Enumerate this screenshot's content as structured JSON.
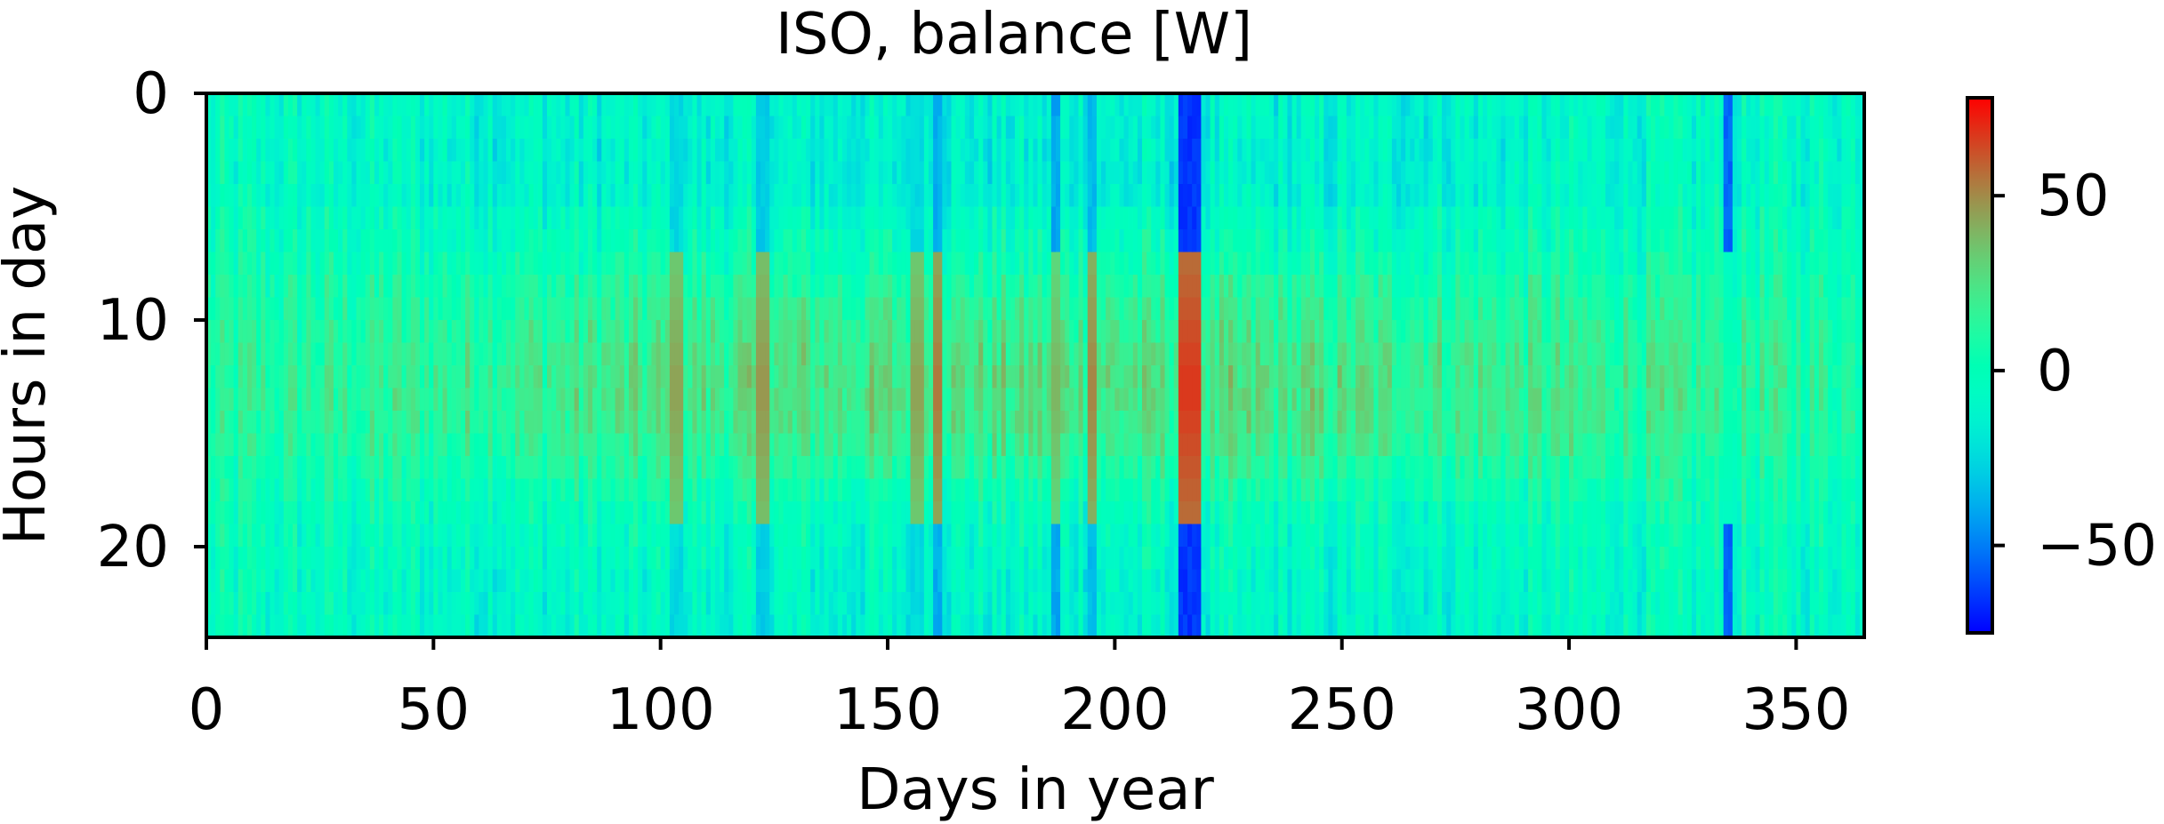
{
  "chart_data": {
    "type": "heatmap",
    "title": "ISO, balance [W]",
    "xlabel": "Days in year",
    "ylabel": "Hours in day",
    "xlim": [
      0,
      365
    ],
    "ylim": [
      24,
      0
    ],
    "x_ticks": [
      0,
      50,
      100,
      150,
      200,
      250,
      300,
      350
    ],
    "y_ticks": [
      0,
      10,
      20
    ],
    "colorbar": {
      "colormap": "rainbow",
      "vmin": -75,
      "vmax": 78,
      "ticks": [
        50,
        0,
        -50
      ],
      "tick_labels": [
        "50",
        "0",
        "−50"
      ]
    },
    "grid": false,
    "value_profile": {
      "dims": {
        "days": 365,
        "hours": 24
      },
      "hourly_mean": [
        -14,
        -15,
        -16,
        -16,
        -15,
        -7,
        -3,
        2,
        9,
        14,
        18,
        22,
        24,
        24,
        22,
        18,
        10,
        3,
        -3,
        -7,
        -9,
        -11,
        -12,
        -13
      ],
      "notable_days": [
        {
          "day_start": 214,
          "day_end": 218,
          "night_value": -65,
          "midday_value": 68
        },
        {
          "day_start": 160,
          "day_end": 161,
          "night_value": -38,
          "midday_value": 55
        },
        {
          "day_start": 186,
          "day_end": 187,
          "night_value": -40,
          "midday_value": 40
        },
        {
          "day_start": 194,
          "day_end": 195,
          "night_value": -35,
          "midday_value": 52
        },
        {
          "day_start": 334,
          "day_end": 335,
          "night_value": -55,
          "midday_value": 5
        },
        {
          "day_start": 121,
          "day_end": 123,
          "night_value": -30,
          "midday_value": 48
        },
        {
          "day_start": 102,
          "day_end": 104,
          "night_value": -25,
          "midday_value": 45
        },
        {
          "day_start": 155,
          "day_end": 157,
          "night_value": -25,
          "midday_value": 45
        }
      ]
    }
  }
}
